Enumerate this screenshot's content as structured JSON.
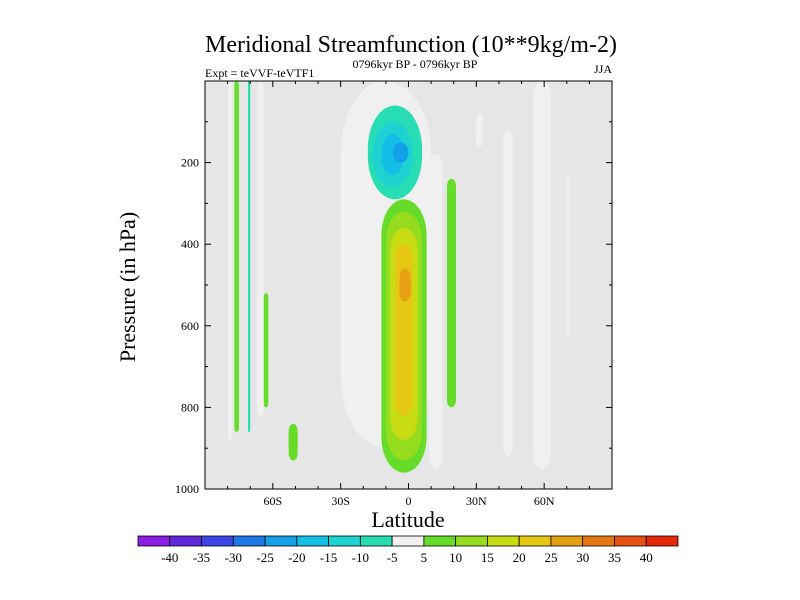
{
  "chart_data": {
    "type": "contour",
    "title": "Meridional Streamfunction (10**9kg/m-2)",
    "left_subtitle": "Expt = teVVF-teVTF1",
    "center_subtitle": "0796kyr BP - 0796kyr BP",
    "right_subtitle": "JJA",
    "xlabel": "Latitude",
    "ylabel": "Pressure (in hPa)",
    "x_ticks": [
      {
        "value": -60,
        "label": "60S"
      },
      {
        "value": -30,
        "label": "30S"
      },
      {
        "value": 0,
        "label": "0"
      },
      {
        "value": 30,
        "label": "30N"
      },
      {
        "value": 60,
        "label": "60N"
      }
    ],
    "y_ticks": [
      {
        "value": 200,
        "label": "200"
      },
      {
        "value": 400,
        "label": "400"
      },
      {
        "value": 600,
        "label": "600"
      },
      {
        "value": 800,
        "label": "800"
      },
      {
        "value": 1000,
        "label": "1000"
      }
    ],
    "xlim": [
      -90,
      90
    ],
    "ylim": [
      1000,
      0
    ],
    "background_color": "#e6e6e6",
    "levels": [
      -40,
      -35,
      -30,
      -25,
      -20,
      -15,
      -10,
      -5,
      5,
      10,
      15,
      20,
      25,
      30,
      35,
      40
    ],
    "level_labels": [
      "-40",
      "-35",
      "-30",
      "-25",
      "-20",
      "-15",
      "-10",
      "-5",
      "5",
      "10",
      "15",
      "20",
      "25",
      "30",
      "35",
      "40"
    ],
    "colors": [
      "#8c1ee6",
      "#6428dc",
      "#3c46e6",
      "#1e78e6",
      "#14a0e6",
      "#14bee6",
      "#1ed2d2",
      "#28dcb4",
      "#f0f0f0",
      "#64dc28",
      "#96dc1e",
      "#c8dc14",
      "#e6c814",
      "#e6a014",
      "#e67814",
      "#e65014",
      "#e6280a"
    ],
    "regions": [
      {
        "lat_min": -80,
        "lat_max": -78,
        "p_top": 0,
        "p_bottom": 880,
        "level": -5
      },
      {
        "lat_min": -77,
        "lat_max": -75,
        "p_top": 0,
        "p_bottom": 860,
        "level": 5
      },
      {
        "lat_min": -71,
        "lat_max": -70,
        "p_top": 0,
        "p_bottom": 860,
        "level": -10
      },
      {
        "lat_min": -67,
        "lat_max": -64,
        "p_top": 0,
        "p_bottom": 820,
        "level": -5
      },
      {
        "lat_min": -64,
        "lat_max": -62,
        "p_top": 520,
        "p_bottom": 800,
        "level": 5
      },
      {
        "lat_min": -53,
        "lat_max": -49,
        "p_top": 840,
        "p_bottom": 930,
        "level": 5
      },
      {
        "lat_min": -30,
        "lat_max": 10,
        "p_top": 0,
        "p_bottom": 900,
        "level": -5
      },
      {
        "lat_min": -18,
        "lat_max": 6,
        "p_top": 60,
        "p_bottom": 290,
        "level": -10
      },
      {
        "lat_min": -16,
        "lat_max": 2,
        "p_top": 100,
        "p_bottom": 260,
        "level": -15
      },
      {
        "lat_min": -12,
        "lat_max": -2,
        "p_top": 130,
        "p_bottom": 230,
        "level": -20
      },
      {
        "lat_min": -7,
        "lat_max": 0,
        "p_top": 150,
        "p_bottom": 200,
        "level": -25
      },
      {
        "lat_min": -12,
        "lat_max": 8,
        "p_top": 290,
        "p_bottom": 960,
        "level": 5
      },
      {
        "lat_min": -10,
        "lat_max": 6,
        "p_top": 320,
        "p_bottom": 930,
        "level": 10
      },
      {
        "lat_min": -8,
        "lat_max": 4,
        "p_top": 360,
        "p_bottom": 880,
        "level": 15
      },
      {
        "lat_min": -6,
        "lat_max": 2,
        "p_top": 400,
        "p_bottom": 820,
        "level": 20
      },
      {
        "lat_min": -4,
        "lat_max": 1,
        "p_top": 460,
        "p_bottom": 540,
        "level": 25
      },
      {
        "lat_min": 9,
        "lat_max": 15,
        "p_top": 180,
        "p_bottom": 950,
        "level": -5
      },
      {
        "lat_min": 17,
        "lat_max": 21,
        "p_top": 240,
        "p_bottom": 800,
        "level": 5
      },
      {
        "lat_min": 30,
        "lat_max": 33,
        "p_top": 80,
        "p_bottom": 160,
        "level": -5
      },
      {
        "lat_min": 42,
        "lat_max": 46,
        "p_top": 120,
        "p_bottom": 920,
        "level": -5
      },
      {
        "lat_min": 55,
        "lat_max": 63,
        "p_top": 0,
        "p_bottom": 950,
        "level": -5
      },
      {
        "lat_min": 70,
        "lat_max": 71,
        "p_top": 230,
        "p_bottom": 630,
        "level": -5
      }
    ]
  }
}
